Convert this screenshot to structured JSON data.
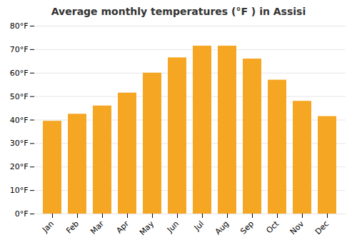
{
  "chart_data": {
    "type": "bar",
    "title": "Average monthly temperatures (°F ) in Assisi",
    "categories": [
      "Jan",
      "Feb",
      "Mar",
      "Apr",
      "May",
      "Jun",
      "Jul",
      "Aug",
      "Sep",
      "Oct",
      "Nov",
      "Dec"
    ],
    "values": [
      39.5,
      42.5,
      46.0,
      51.5,
      60.0,
      66.5,
      71.5,
      71.5,
      66.0,
      57.0,
      48.0,
      41.5
    ],
    "color": "#F5A623",
    "ylim": [
      0,
      80
    ],
    "yticks": [
      {
        "value": 0,
        "label": "0°F"
      },
      {
        "value": 10,
        "label": "10°F"
      },
      {
        "value": 20,
        "label": "20°F"
      },
      {
        "value": 30,
        "label": "30°F"
      },
      {
        "value": 40,
        "label": "40°F"
      },
      {
        "value": 50,
        "label": "50°F"
      },
      {
        "value": 60,
        "label": "60°F"
      },
      {
        "value": 70,
        "label": "70°F"
      },
      {
        "value": 80,
        "label": "80°F"
      }
    ],
    "grid": true
  }
}
